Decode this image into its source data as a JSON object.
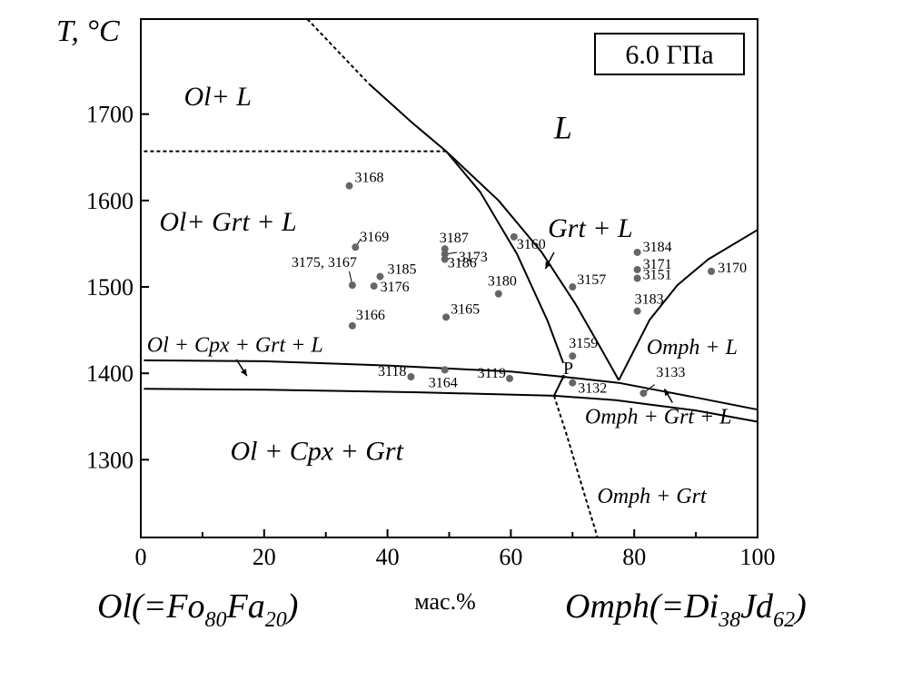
{
  "chart_data": {
    "type": "scatter",
    "title": "6.0 ГПа",
    "ylabel": "T, °C",
    "xlabel": "мас.%",
    "xlim": [
      0,
      100
    ],
    "ylim": [
      1210,
      1810
    ],
    "x_ticks": [
      "0",
      "20",
      "40",
      "60",
      "80",
      "100"
    ],
    "x_tick_values": [
      0,
      20,
      40,
      60,
      80,
      100
    ],
    "y_ticks": [
      "1300",
      "1400",
      "1500",
      "1600",
      "1700"
    ],
    "y_tick_values": [
      1300,
      1400,
      1500,
      1600,
      1700
    ],
    "left_endmember": {
      "main": "Ol(=Fo",
      "s1": "80",
      "mid": "Fa",
      "s2": "20",
      "tail": ")"
    },
    "right_endmember": {
      "main": "Omph(=Di",
      "s1": "38",
      "mid": "Jd",
      "s2": "62",
      "tail": ")"
    },
    "point_color": "#666666",
    "line_color": "#000000",
    "points": [
      {
        "label": "3168",
        "x": 33.8,
        "y": 1617
      },
      {
        "label": "3169",
        "x": 34.8,
        "y": 1546
      },
      {
        "label": "3175, 3167",
        "x": 34.3,
        "y": 1502
      },
      {
        "label": "3185",
        "x": 38.8,
        "y": 1512
      },
      {
        "label": "3176",
        "x": 37.8,
        "y": 1501
      },
      {
        "label": "3166",
        "x": 34.3,
        "y": 1455
      },
      {
        "label": "3187",
        "x": 49.3,
        "y": 1544
      },
      {
        "label": "3173",
        "x": 49.3,
        "y": 1538
      },
      {
        "label": "3186",
        "x": 49.3,
        "y": 1532
      },
      {
        "label": "3165",
        "x": 49.5,
        "y": 1465
      },
      {
        "label": "3160",
        "x": 60.5,
        "y": 1558
      },
      {
        "label": "3180",
        "x": 58.0,
        "y": 1492
      },
      {
        "label": "3157",
        "x": 70.0,
        "y": 1500
      },
      {
        "label": "3159",
        "x": 70.0,
        "y": 1420
      },
      {
        "label": "3132",
        "x": 70.0,
        "y": 1389
      },
      {
        "label": "3118",
        "x": 43.8,
        "y": 1396
      },
      {
        "label": "3164",
        "x": 49.3,
        "y": 1404
      },
      {
        "label": "3119",
        "x": 59.8,
        "y": 1394
      },
      {
        "label": "3184",
        "x": 80.5,
        "y": 1540
      },
      {
        "label": "3171",
        "x": 80.5,
        "y": 1520
      },
      {
        "label": "3151",
        "x": 80.5,
        "y": 1510
      },
      {
        "label": "3183",
        "x": 80.5,
        "y": 1472
      },
      {
        "label": "3170",
        "x": 92.5,
        "y": 1518
      },
      {
        "label": "3133",
        "x": 81.5,
        "y": 1377
      }
    ],
    "point_p_label": "P",
    "phase_fields": [
      {
        "id": "ol-l",
        "text": "Ol+ L",
        "cls": "phase-label",
        "x": 7,
        "y": 1710
      },
      {
        "id": "l",
        "text": "L",
        "cls": "phase-label-big",
        "x": 67,
        "y": 1672
      },
      {
        "id": "ol-grt-l",
        "text": "Ol+ Grt + L",
        "cls": "phase-label",
        "x": 3,
        "y": 1565
      },
      {
        "id": "grt-l",
        "text": "Grt + L",
        "cls": "phase-label",
        "x": 66,
        "y": 1558
      },
      {
        "id": "ol-cpx-grt-l",
        "text": "Ol + Cpx + Grt  + L",
        "cls": "phase-label-sm",
        "x": 1,
        "y": 1425
      },
      {
        "id": "omph-l",
        "text": "Omph + L",
        "cls": "phase-label-sm",
        "x": 82,
        "y": 1422
      },
      {
        "id": "omph-grt-l",
        "text": "Omph + Grt  + L",
        "cls": "phase-label-sm",
        "x": 72,
        "y": 1342
      },
      {
        "id": "ol-cpx-grt",
        "text": "Ol + Cpx + Grt",
        "cls": "phase-label",
        "x": 14.5,
        "y": 1300
      },
      {
        "id": "omph-grt",
        "text": "Omph + Grt",
        "cls": "phase-label-sm",
        "x": 74,
        "y": 1250
      }
    ],
    "boundaries": [
      {
        "id": "liquidus-upper-dashed",
        "dashed": true,
        "pts": [
          [
            27,
            1810
          ],
          [
            37,
            1735
          ]
        ]
      },
      {
        "id": "liquidus-upper",
        "dashed": false,
        "pts": [
          [
            37,
            1735
          ],
          [
            44,
            1690
          ],
          [
            49.5,
            1657
          ],
          [
            55,
            1610
          ],
          [
            61,
            1538
          ],
          [
            66,
            1460
          ],
          [
            68.5,
            1412
          ]
        ]
      },
      {
        "id": "ol-out-dashed",
        "dashed": true,
        "pts": [
          [
            0.5,
            1657
          ],
          [
            49.5,
            1657
          ]
        ]
      },
      {
        "id": "grt-l-upper",
        "dashed": false,
        "pts": [
          [
            49.5,
            1657
          ],
          [
            58,
            1600
          ],
          [
            65,
            1540
          ],
          [
            70.5,
            1480
          ],
          [
            74.5,
            1430
          ],
          [
            77.5,
            1392
          ]
        ]
      },
      {
        "id": "omph-liquidus",
        "dashed": false,
        "pts": [
          [
            77.5,
            1392
          ],
          [
            82.5,
            1462
          ],
          [
            87,
            1502
          ],
          [
            92,
            1532
          ],
          [
            100,
            1566
          ]
        ]
      },
      {
        "id": "cpx-in",
        "dashed": false,
        "pts": [
          [
            0.5,
            1415
          ],
          [
            20,
            1414
          ],
          [
            40,
            1409
          ],
          [
            60,
            1402
          ],
          [
            68.5,
            1396
          ],
          [
            77.5,
            1389
          ],
          [
            90,
            1372
          ],
          [
            100,
            1358
          ]
        ]
      },
      {
        "id": "solidus",
        "dashed": false,
        "pts": [
          [
            0.5,
            1382
          ],
          [
            20,
            1381
          ],
          [
            45,
            1378
          ],
          [
            67,
            1374
          ],
          [
            77,
            1369
          ],
          [
            90,
            1357
          ],
          [
            100,
            1344
          ]
        ]
      },
      {
        "id": "p-connector",
        "dashed": false,
        "pts": [
          [
            68.5,
            1396
          ],
          [
            67,
            1374
          ]
        ]
      },
      {
        "id": "ol-out-lower-dashed",
        "dashed": true,
        "pts": [
          [
            67,
            1374
          ],
          [
            69,
            1330
          ],
          [
            71.5,
            1270
          ],
          [
            74,
            1211
          ]
        ]
      }
    ],
    "leaders": [
      {
        "from": [
          34.8,
          1546
        ],
        "to": [
          35.7,
          1556
        ]
      },
      {
        "from": [
          49.3,
          1538
        ],
        "to": [
          51.3,
          1540
        ]
      },
      {
        "from": [
          34.3,
          1502
        ],
        "to": [
          33.8,
          1518
        ]
      },
      {
        "from": [
          81.5,
          1377
        ],
        "to": [
          83.3,
          1387
        ]
      }
    ],
    "arrows": [
      {
        "from": [
          15.5,
          1416
        ],
        "to": [
          17.2,
          1397
        ]
      },
      {
        "from": [
          67,
          1540
        ],
        "to": [
          65.6,
          1521
        ]
      },
      {
        "from": [
          86.2,
          1366
        ],
        "to": [
          84.9,
          1382
        ]
      }
    ]
  }
}
